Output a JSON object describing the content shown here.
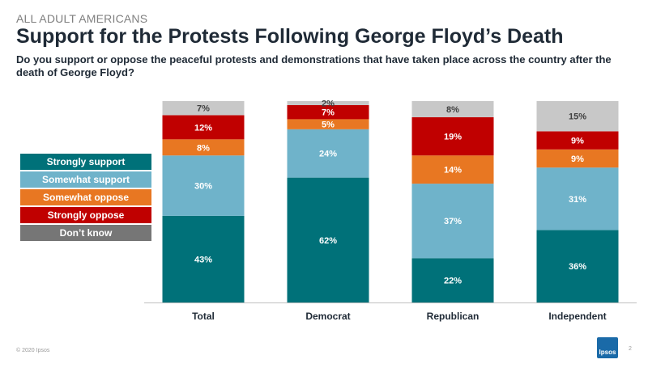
{
  "header": {
    "eyebrow": "ALL ADULT AMERICANS",
    "title": "Support for the Protests Following George Floyd’s Death",
    "subtitle": "Do you support or oppose the peaceful protests and demonstrations that have taken place across the country after the death of George Floyd?"
  },
  "legend": [
    {
      "label": "Strongly support",
      "color": "#007179"
    },
    {
      "label": "Somewhat support",
      "color": "#6fb3ca"
    },
    {
      "label": "Somewhat oppose",
      "color": "#e87722"
    },
    {
      "label": "Strongly oppose",
      "color": "#c00000"
    },
    {
      "label": "Don’t know",
      "color": "#767676"
    }
  ],
  "chart_data": {
    "type": "bar",
    "stacked": true,
    "categories": [
      "Total",
      "Democrat",
      "Republican",
      "Independent"
    ],
    "series": [
      {
        "name": "Strongly support",
        "color": "#007179",
        "values": [
          43,
          62,
          22,
          36
        ],
        "labels": [
          "43%",
          "62%",
          "22%",
          "36%"
        ]
      },
      {
        "name": "Somewhat support",
        "color": "#6fb3ca",
        "values": [
          30,
          24,
          37,
          31
        ],
        "labels": [
          "30%",
          "24%",
          "37%",
          "31%"
        ]
      },
      {
        "name": "Somewhat oppose",
        "color": "#e87722",
        "values": [
          8,
          5,
          14,
          9
        ],
        "labels": [
          "8%",
          "5%",
          "14%",
          "9%"
        ]
      },
      {
        "name": "Strongly oppose",
        "color": "#c00000",
        "values": [
          12,
          7,
          19,
          9
        ],
        "labels": [
          "12%",
          "7%",
          "19%",
          "9%"
        ]
      },
      {
        "name": "Don’t know",
        "color": "#c8c8c8",
        "values": [
          7,
          2,
          8,
          15
        ],
        "labels": [
          "7%",
          "2%",
          "8%",
          "15%"
        ]
      }
    ],
    "ylim": [
      0,
      100
    ],
    "grid": false,
    "legend_position": "left"
  },
  "footer": {
    "copyright": "© 2020 Ipsos",
    "page_number": "2",
    "logo_text": "Ipsos"
  }
}
